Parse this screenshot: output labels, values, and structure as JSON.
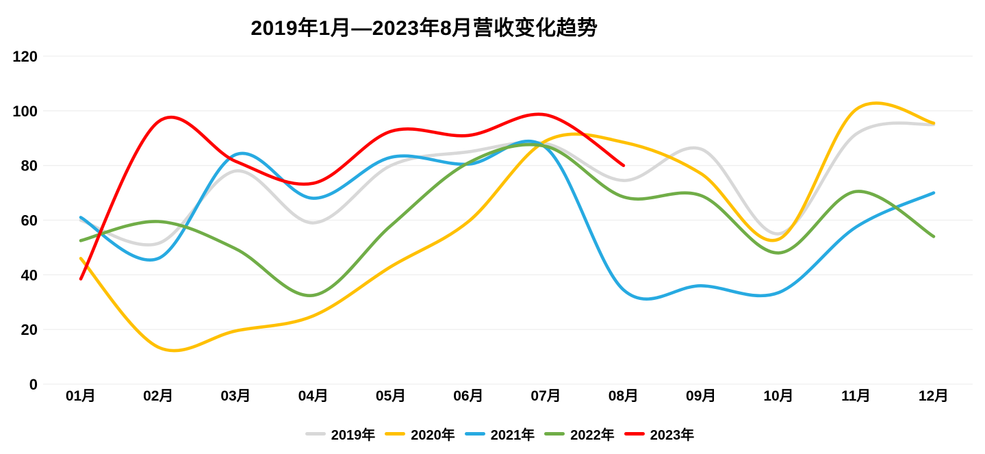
{
  "colors": {
    "background": "#FFFFFF",
    "gridline": "#EFEFEF",
    "text": "#000000"
  },
  "chart_data": {
    "type": "line",
    "title": "2019年1月—2023年8月营收变化趋势",
    "xlabel": "",
    "ylabel": "",
    "categories": [
      "01月",
      "02月",
      "03月",
      "04月",
      "05月",
      "06月",
      "07月",
      "08月",
      "09月",
      "10月",
      "11月",
      "12月"
    ],
    "series": [
      {
        "name": "2019年",
        "color": "#D8D8D8",
        "values": [
          60,
          51.5,
          78,
          59,
          80,
          85,
          88,
          74.5,
          86,
          55,
          91.5,
          95
        ]
      },
      {
        "name": "2020年",
        "color": "#FFC000",
        "values": [
          46,
          13.5,
          19.5,
          25,
          43,
          59.5,
          89,
          88.5,
          77,
          53,
          100.5,
          95.5
        ]
      },
      {
        "name": "2021年",
        "color": "#27AAE1",
        "values": [
          61,
          46,
          84,
          68,
          83,
          80.5,
          86.5,
          34.5,
          36,
          33.5,
          57.5,
          70
        ]
      },
      {
        "name": "2022年",
        "color": "#70AD47",
        "values": [
          52.5,
          59.5,
          49.5,
          32.5,
          58,
          81,
          87,
          68.5,
          69,
          48,
          70.5,
          54
        ]
      },
      {
        "name": "2023年",
        "color": "#FE0000",
        "values": [
          38.5,
          96,
          81.5,
          73.5,
          92.5,
          91,
          98.5,
          80
        ]
      }
    ],
    "ylim": [
      0,
      120
    ],
    "yticks": [
      0,
      20,
      40,
      60,
      80,
      100,
      120
    ],
    "grid": true,
    "smooth": true,
    "legend_position": "bottom"
  }
}
